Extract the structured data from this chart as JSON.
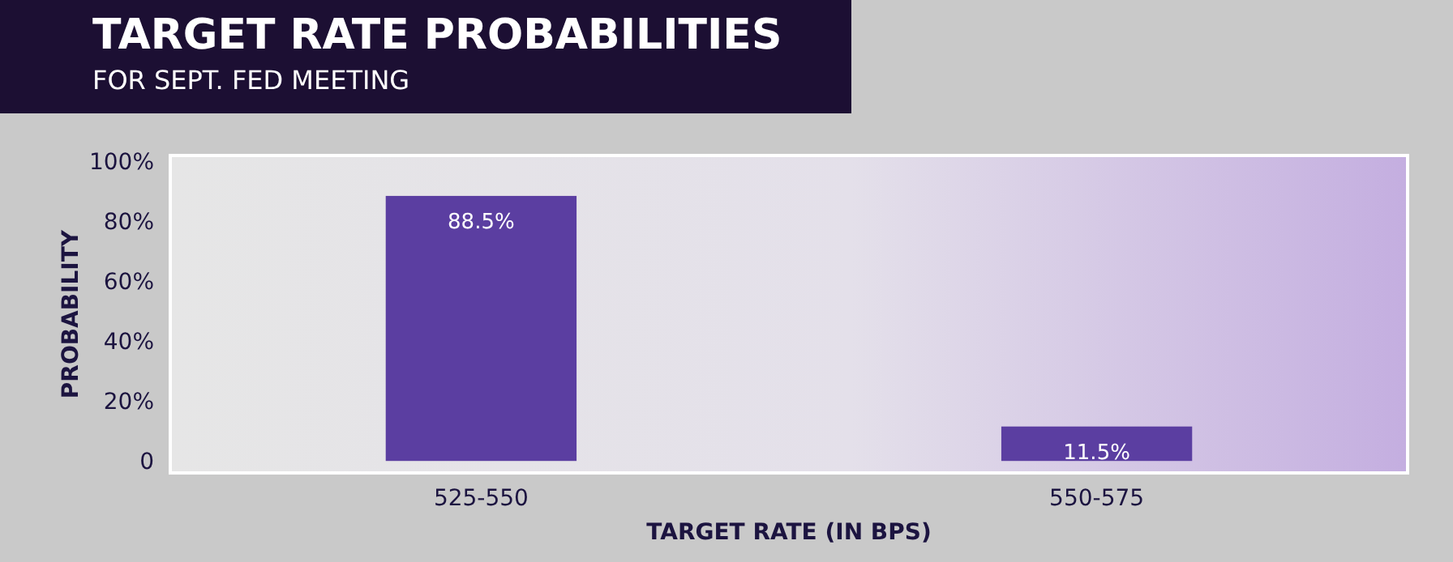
{
  "chart_data": {
    "type": "bar",
    "title": "TARGET RATE PROBABILITIES",
    "subtitle": "FOR SEPT. FED MEETING",
    "xlabel": "TARGET RATE (IN BPS)",
    "ylabel": "PROBABILITY",
    "categories": [
      "525-550",
      "550-575"
    ],
    "values": [
      88.5,
      11.5
    ],
    "color": "#5b3ea1",
    "value_labels": [
      "88.5%",
      "11.5%"
    ],
    "ylim": [
      -4,
      102
    ],
    "yticks": [
      {
        "value": 0,
        "label": "0"
      },
      {
        "value": 20,
        "label": "20%"
      },
      {
        "value": 40,
        "label": "40%"
      },
      {
        "value": 60,
        "label": "60%"
      },
      {
        "value": 80,
        "label": "80%"
      },
      {
        "value": 100,
        "label": "100%"
      }
    ],
    "grid": false
  }
}
